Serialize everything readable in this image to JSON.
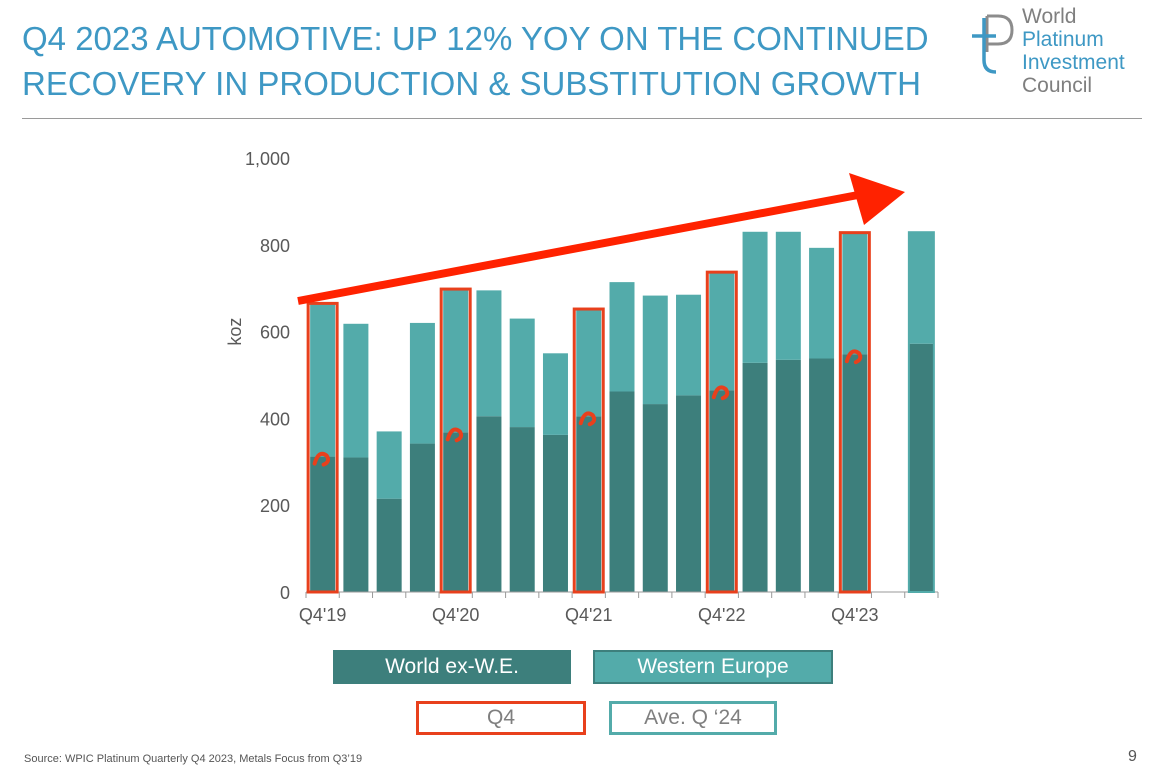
{
  "header": {
    "title_line1": "Q4 2023 AUTOMOTIVE: UP 12% YOY ON THE CONTINUED",
    "title_line2": "RECOVERY IN PRODUCTION & SUBSTITUTION GROWTH"
  },
  "logo": {
    "line1": "World",
    "line2": "Platinum",
    "line3": "Investment",
    "line4": "Council",
    "icon": "wpic-pt-logo-icon"
  },
  "chart_data": {
    "type": "bar",
    "stacked": true,
    "ylabel": "koz",
    "ylim": [
      0,
      1000
    ],
    "yticks": [
      0,
      200,
      400,
      600,
      800,
      1000
    ],
    "ytick_labels": [
      "0",
      "200",
      "400",
      "600",
      "800",
      "1,000"
    ],
    "xtick_labels": [
      {
        "index": 0,
        "label": "Q4'19"
      },
      {
        "index": 4,
        "label": "Q4'20"
      },
      {
        "index": 8,
        "label": "Q4'21"
      },
      {
        "index": 12,
        "label": "Q4'22"
      },
      {
        "index": 16,
        "label": "Q4'23"
      }
    ],
    "num_slots": 19,
    "series": [
      {
        "name": "World ex-W.E.",
        "color": "#3d7f7c",
        "values": [
          312,
          310,
          215,
          342,
          368,
          405,
          380,
          362,
          405,
          462,
          433,
          453,
          465,
          528,
          535,
          538,
          548,
          null,
          572
        ]
      },
      {
        "name": "Western Europe",
        "color": "#53abaa",
        "values": [
          353,
          308,
          155,
          278,
          330,
          290,
          250,
          188,
          247,
          252,
          250,
          232,
          272,
          302,
          295,
          255,
          280,
          null,
          257
        ]
      }
    ],
    "highlighted_q4_indices": [
      0,
      4,
      8,
      12,
      16
    ],
    "average_bar_index": 18,
    "trend": "upward arrow",
    "colors": {
      "q4_highlight": "#e8401c",
      "trend_arrow": "#ff2200",
      "axis": "#9a9a9a"
    }
  },
  "legend": {
    "world_ex_we": "World ex-W.E.",
    "western_europe": "Western Europe",
    "q4": "Q4",
    "ave_q24": "Ave. Q ‘24"
  },
  "footer": {
    "source": "Source: WPIC Platinum Quarterly Q4 2023, Metals Focus from Q3’19",
    "page": "9"
  }
}
